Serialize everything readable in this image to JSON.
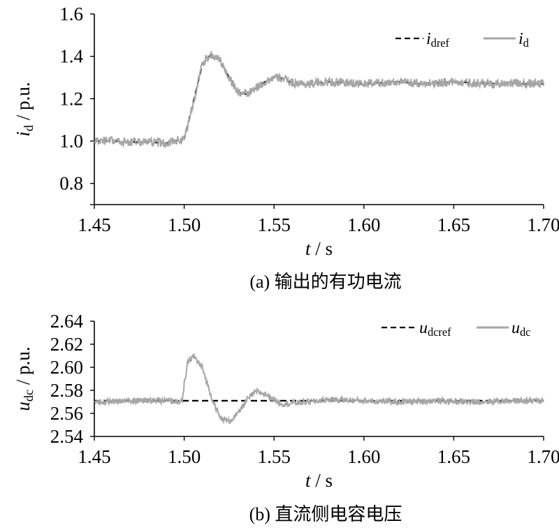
{
  "chart_data": [
    {
      "type": "line",
      "caption": "(a) 输出的有功电流",
      "ylabel": {
        "main": "i",
        "sub": "d",
        "unit": " / p.u."
      },
      "xlabel": {
        "main": "t",
        "unit": " / s"
      },
      "xlim": [
        1.45,
        1.7
      ],
      "ylim": [
        0.7,
        1.6
      ],
      "xticks": [
        "1.45",
        "1.50",
        "1.55",
        "1.60",
        "1.65",
        "1.70"
      ],
      "yticks": [
        "0.8",
        "1.0",
        "1.2",
        "1.4",
        "1.6"
      ],
      "legend_position": "top-right",
      "series": [
        {
          "name": "idref",
          "label_main": "i",
          "label_sub": "dref",
          "style": "dashed",
          "color": "#000000",
          "x": [
            1.45,
            1.46,
            1.47,
            1.48,
            1.49,
            1.495,
            1.5,
            1.505,
            1.51,
            1.515,
            1.52,
            1.525,
            1.53,
            1.535,
            1.54,
            1.545,
            1.55,
            1.555,
            1.56,
            1.565,
            1.57,
            1.58,
            1.59,
            1.6,
            1.61,
            1.62,
            1.63,
            1.64,
            1.65,
            1.66,
            1.67,
            1.68,
            1.69,
            1.7
          ],
          "y": [
            1.0,
            1.0,
            0.995,
            0.995,
            0.99,
            1.0,
            1.01,
            1.18,
            1.36,
            1.41,
            1.38,
            1.3,
            1.23,
            1.22,
            1.25,
            1.28,
            1.3,
            1.295,
            1.275,
            1.27,
            1.27,
            1.28,
            1.275,
            1.27,
            1.275,
            1.28,
            1.27,
            1.275,
            1.28,
            1.275,
            1.27,
            1.275,
            1.27,
            1.27
          ]
        },
        {
          "name": "id",
          "label_main": "i",
          "label_sub": "d",
          "style": "noisy",
          "noise_amplitude": 0.02,
          "color": "#a6a6a6",
          "x": [
            1.45,
            1.46,
            1.47,
            1.48,
            1.49,
            1.495,
            1.5,
            1.505,
            1.51,
            1.515,
            1.52,
            1.525,
            1.53,
            1.535,
            1.54,
            1.545,
            1.55,
            1.555,
            1.56,
            1.565,
            1.57,
            1.58,
            1.59,
            1.6,
            1.61,
            1.62,
            1.63,
            1.64,
            1.65,
            1.66,
            1.67,
            1.68,
            1.69,
            1.7
          ],
          "y": [
            1.0,
            1.0,
            0.995,
            0.995,
            0.99,
            1.0,
            1.01,
            1.18,
            1.36,
            1.41,
            1.38,
            1.3,
            1.23,
            1.22,
            1.25,
            1.28,
            1.3,
            1.295,
            1.275,
            1.27,
            1.27,
            1.28,
            1.275,
            1.27,
            1.275,
            1.28,
            1.27,
            1.275,
            1.28,
            1.275,
            1.27,
            1.275,
            1.27,
            1.27
          ]
        }
      ]
    },
    {
      "type": "line",
      "caption": "(b) 直流侧电容电压",
      "ylabel": {
        "main": "u",
        "sub": "dc",
        "unit": " / p.u."
      },
      "xlabel": {
        "main": "t",
        "unit": " / s"
      },
      "xlim": [
        1.45,
        1.7
      ],
      "ylim": [
        2.54,
        2.64
      ],
      "xticks": [
        "1.45",
        "1.50",
        "1.55",
        "1.60",
        "1.65",
        "1.70"
      ],
      "yticks": [
        "2.54",
        "2.56",
        "2.58",
        "2.60",
        "2.62",
        "2.64"
      ],
      "legend_position": "top-right",
      "series": [
        {
          "name": "udcref",
          "label_main": "u",
          "label_sub": "dcref",
          "style": "dashed",
          "color": "#000000",
          "x": [
            1.45,
            1.7
          ],
          "y": [
            2.571,
            2.571
          ]
        },
        {
          "name": "udc",
          "label_main": "u",
          "label_sub": "dc",
          "style": "noisy",
          "noise_amplitude": 0.0025,
          "color": "#a6a6a6",
          "x": [
            1.45,
            1.47,
            1.49,
            1.499,
            1.5,
            1.502,
            1.505,
            1.51,
            1.515,
            1.52,
            1.525,
            1.53,
            1.535,
            1.54,
            1.545,
            1.55,
            1.555,
            1.56,
            1.57,
            1.58,
            1.6,
            1.62,
            1.64,
            1.66,
            1.68,
            1.7
          ],
          "y": [
            2.57,
            2.571,
            2.571,
            2.57,
            2.585,
            2.604,
            2.61,
            2.6,
            2.575,
            2.556,
            2.553,
            2.56,
            2.572,
            2.579,
            2.577,
            2.572,
            2.568,
            2.569,
            2.57,
            2.572,
            2.571,
            2.57,
            2.571,
            2.57,
            2.571,
            2.571
          ]
        }
      ]
    }
  ]
}
